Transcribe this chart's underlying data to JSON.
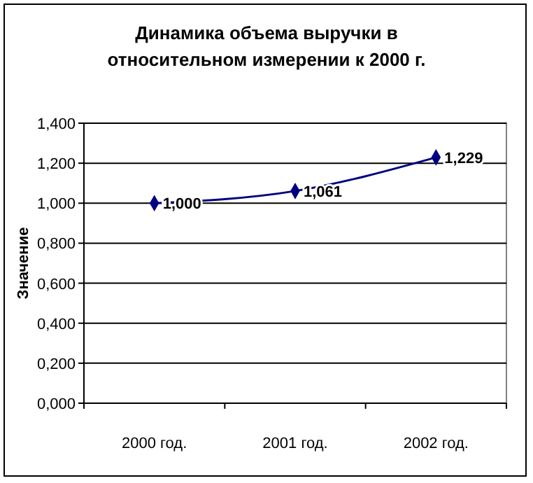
{
  "chart_data": {
    "type": "line",
    "title": "Динамика объема выручки в\nотносительном измерении к 2000 г.",
    "ylabel": "Значение",
    "categories": [
      "2000 год.",
      "2001 год.",
      "2002 год."
    ],
    "series": [
      {
        "color": "#000080",
        "values": [
          1.0,
          1.061,
          1.229
        ],
        "value_labels": [
          "1,000",
          "1,061",
          "1,229"
        ]
      }
    ],
    "ylim": [
      0,
      1.4
    ],
    "yticks": [
      {
        "value": 0,
        "label": "0,000"
      },
      {
        "value": 0.2,
        "label": "0,200"
      },
      {
        "value": 0.4,
        "label": "0,400"
      },
      {
        "value": 0.6,
        "label": "0,600"
      },
      {
        "value": 0.8,
        "label": "0,800"
      },
      {
        "value": 1.0,
        "label": "1,000"
      },
      {
        "value": 1.2,
        "label": "1,200"
      },
      {
        "value": 1.4,
        "label": "1,400"
      }
    ],
    "grid": "y",
    "marker": "diamond",
    "line_style": "solid"
  }
}
